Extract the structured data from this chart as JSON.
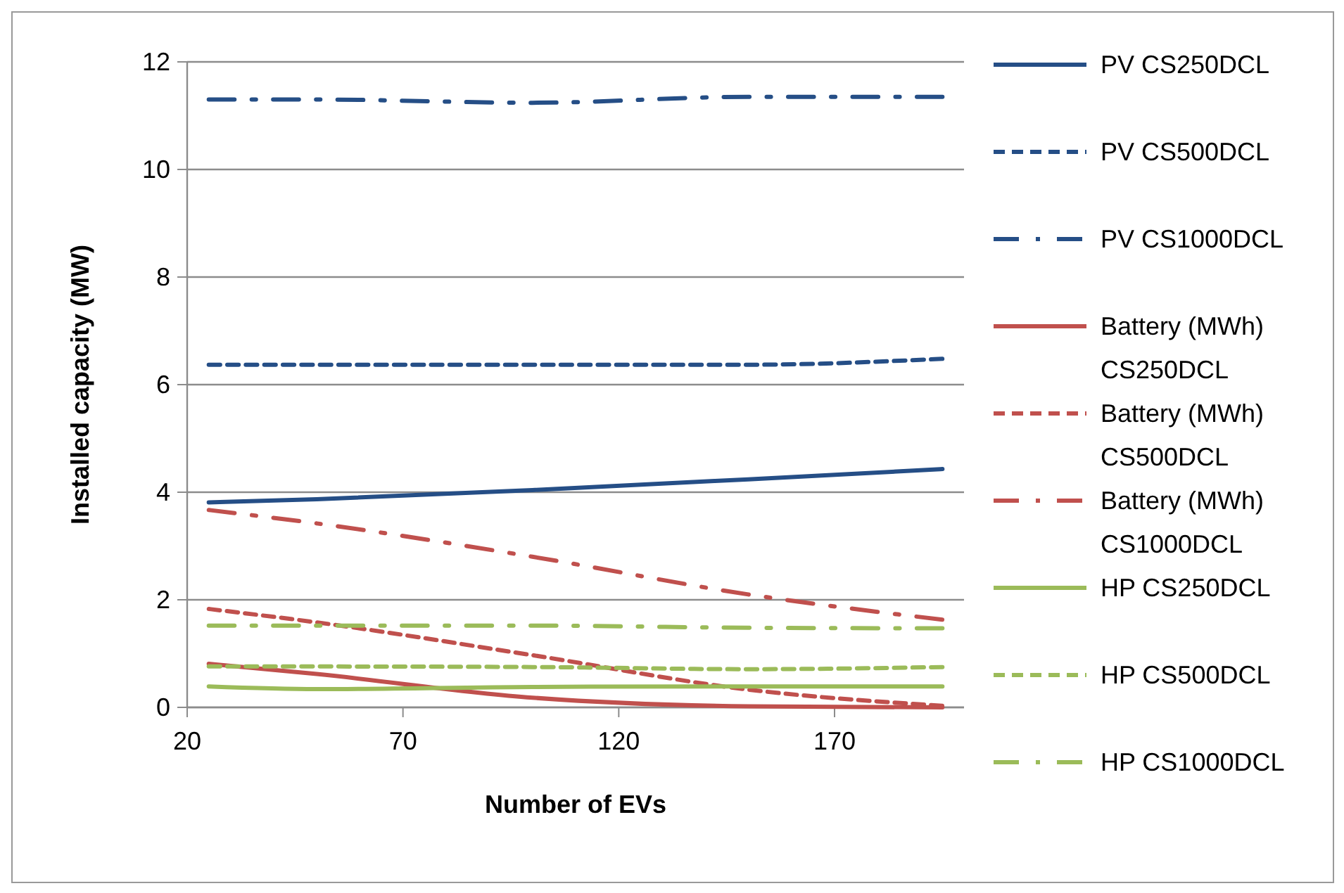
{
  "chart_data": {
    "type": "line",
    "xlabel": "Number of EVs",
    "ylabel": "Installed capacity (MW)",
    "x": [
      25,
      50,
      100,
      150,
      195
    ],
    "xlim": [
      20,
      200
    ],
    "xticks": [
      20,
      70,
      120,
      170
    ],
    "ylim": [
      0,
      12
    ],
    "yticks": [
      0,
      2,
      4,
      6,
      8,
      10,
      12
    ],
    "grid": "y",
    "legend": "right",
    "marker": "none",
    "series": [
      {
        "name": "PV CS250DCL",
        "color": "#254e86",
        "line_style": "solid",
        "values": [
          3.81,
          3.87,
          4.04,
          4.24,
          4.43
        ]
      },
      {
        "name": "PV CS500DCL",
        "color": "#254e86",
        "line_style": "dashed",
        "values": [
          6.37,
          6.37,
          6.37,
          6.37,
          6.48
        ]
      },
      {
        "name": "PV CS1000DCL",
        "color": "#254e86",
        "line_style": "dashdot",
        "values": [
          11.3,
          11.3,
          11.24,
          11.35,
          11.35
        ]
      },
      {
        "name": "Battery (MWh) CS250DCL",
        "color": "#c0504d",
        "line_style": "solid",
        "values": [
          0.81,
          0.62,
          0.18,
          0.02,
          0.0
        ]
      },
      {
        "name": "Battery (MWh) CS500DCL",
        "color": "#c0504d",
        "line_style": "dashed",
        "values": [
          1.83,
          1.58,
          0.97,
          0.33,
          0.03
        ]
      },
      {
        "name": "Battery (MWh) CS1000DCL",
        "color": "#c0504d",
        "line_style": "dashdot",
        "values": [
          3.67,
          3.42,
          2.8,
          2.1,
          1.63
        ]
      },
      {
        "name": "HP CS250DCL",
        "color": "#9bbb59",
        "line_style": "solid",
        "values": [
          0.39,
          0.34,
          0.38,
          0.39,
          0.39
        ]
      },
      {
        "name": "HP CS500DCL",
        "color": "#9bbb59",
        "line_style": "dashed",
        "values": [
          0.76,
          0.76,
          0.75,
          0.71,
          0.75
        ]
      },
      {
        "name": "HP CS1000DCL",
        "color": "#9bbb59",
        "line_style": "dashdot",
        "values": [
          1.52,
          1.52,
          1.52,
          1.48,
          1.47
        ]
      }
    ]
  }
}
